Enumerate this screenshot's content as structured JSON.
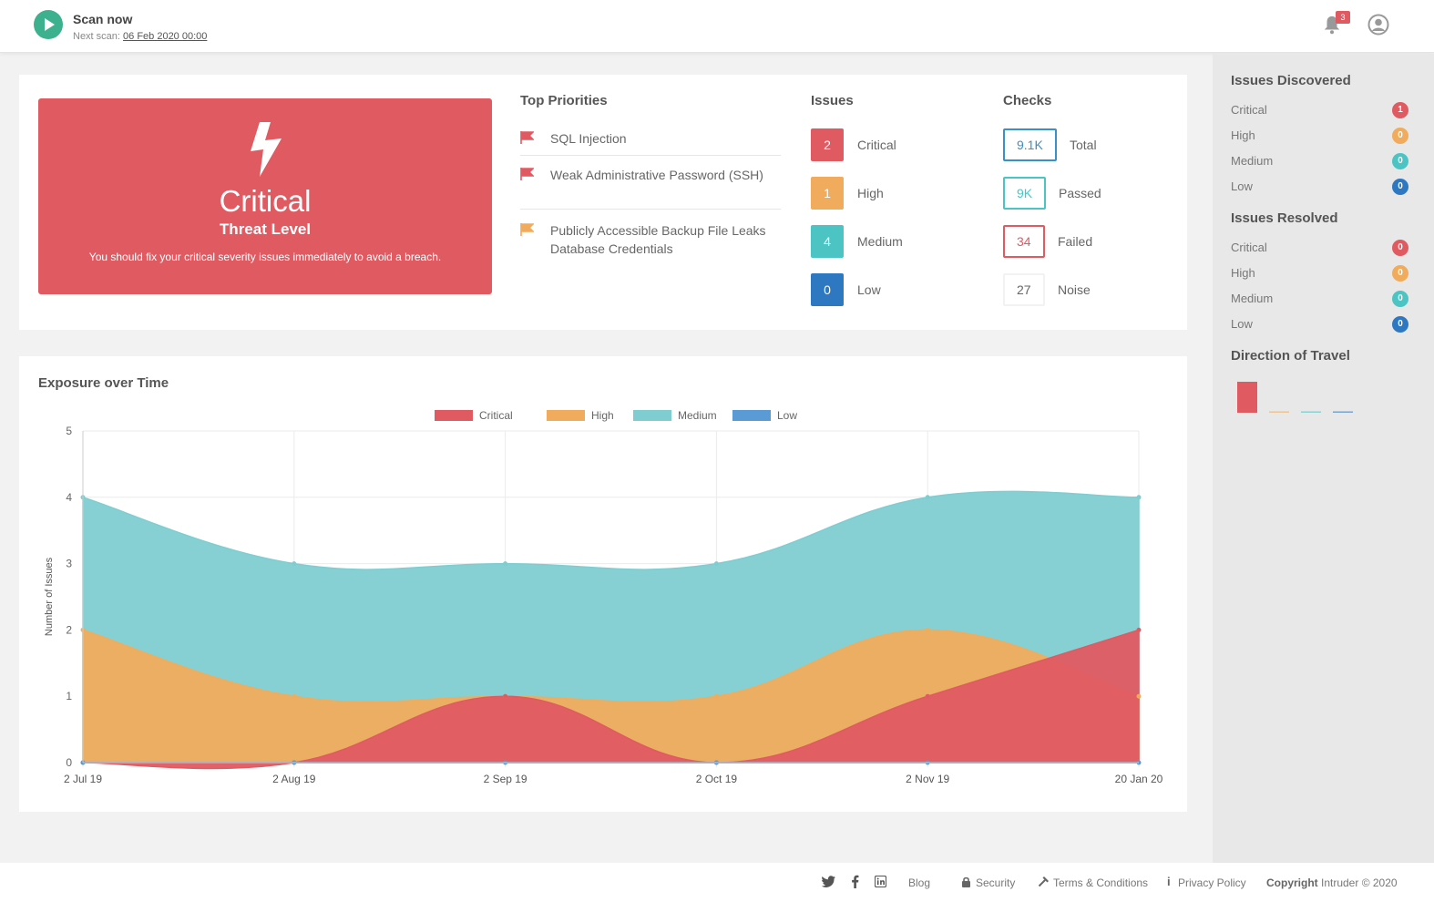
{
  "header": {
    "scan_title": "Scan now",
    "next_scan_label": "Next scan:",
    "next_scan_date": "06 Feb 2020 00:00",
    "notification_count": "3"
  },
  "threat": {
    "level": "Critical",
    "sub": "Threat Level",
    "message": "You should fix your critical severity issues immediately to avoid a breach."
  },
  "priorities": {
    "title": "Top Priorities",
    "items": [
      {
        "text": "SQL Injection",
        "color": "#e05a62"
      },
      {
        "text": "Weak Administrative Password (SSH)",
        "color": "#e05a62"
      },
      {
        "text": "Publicly Accessible Backup File Leaks Database Credentials",
        "color": "#f0ac5c"
      }
    ]
  },
  "issues": {
    "title": "Issues",
    "rows": [
      {
        "count": "2",
        "label": "Critical",
        "color": "#e05a62"
      },
      {
        "count": "1",
        "label": "High",
        "color": "#f0ac5c"
      },
      {
        "count": "4",
        "label": "Medium",
        "color": "#4cc4c4"
      },
      {
        "count": "0",
        "label": "Low",
        "color": "#2e78c2"
      }
    ]
  },
  "checks": {
    "title": "Checks",
    "rows": [
      {
        "value": "9.1K",
        "label": "Total",
        "color": "#3a90c8"
      },
      {
        "value": "9K",
        "label": "Passed",
        "color": "#4cc4c4"
      },
      {
        "value": "34",
        "label": "Failed",
        "color": "#e05a62"
      },
      {
        "value": "27",
        "label": "Noise",
        "color": "#f2f2f2"
      }
    ]
  },
  "sidebar": {
    "discovered_title": "Issues Discovered",
    "discovered": [
      {
        "label": "Critical",
        "value": "1",
        "color": "#e05a62"
      },
      {
        "label": "High",
        "value": "0",
        "color": "#f0ac5c"
      },
      {
        "label": "Medium",
        "value": "0",
        "color": "#4cc4c4"
      },
      {
        "label": "Low",
        "value": "0",
        "color": "#2e78c2"
      }
    ],
    "resolved_title": "Issues Resolved",
    "resolved": [
      {
        "label": "Critical",
        "value": "0",
        "color": "#e05a62"
      },
      {
        "label": "High",
        "value": "0",
        "color": "#f0ac5c"
      },
      {
        "label": "Medium",
        "value": "0",
        "color": "#4cc4c4"
      },
      {
        "label": "Low",
        "value": "0",
        "color": "#2e78c2"
      }
    ],
    "direction_title": "Direction of Travel",
    "direction_values": [
      1,
      0,
      0,
      0
    ]
  },
  "chart_data": {
    "type": "area",
    "title": "Exposure over Time",
    "ylabel": "Number of Issues",
    "xlabel": "",
    "ylim": [
      0,
      5
    ],
    "yticks": [
      "0",
      "1",
      "2",
      "3",
      "4",
      "5"
    ],
    "x": [
      "2 Jul 19",
      "2 Aug 19",
      "2 Sep 19",
      "2 Oct 19",
      "2 Nov 19",
      "20 Jan 20"
    ],
    "legend_position": "top",
    "series": [
      {
        "name": "Critical",
        "color": "#e05a62",
        "values": [
          0,
          0,
          1,
          0,
          1,
          2
        ]
      },
      {
        "name": "High",
        "color": "#f0ac5c",
        "values": [
          2,
          1,
          1,
          1,
          2,
          1
        ]
      },
      {
        "name": "Medium",
        "color": "#7fcdd1",
        "values": [
          4,
          3,
          3,
          3,
          4,
          4
        ]
      },
      {
        "name": "Low",
        "color": "#5b9bd5",
        "values": [
          0,
          0,
          0,
          0,
          0,
          0
        ]
      }
    ]
  },
  "footer": {
    "blog": "Blog",
    "security": "Security",
    "terms": "Terms & Conditions",
    "privacy": "Privacy Policy",
    "copyright_bold": "Copyright",
    "copyright_rest": "Intruder © 2020"
  },
  "icons": {
    "twitter": "twitter-icon",
    "facebook": "facebook-icon",
    "linkedin": "linkedin-icon"
  }
}
